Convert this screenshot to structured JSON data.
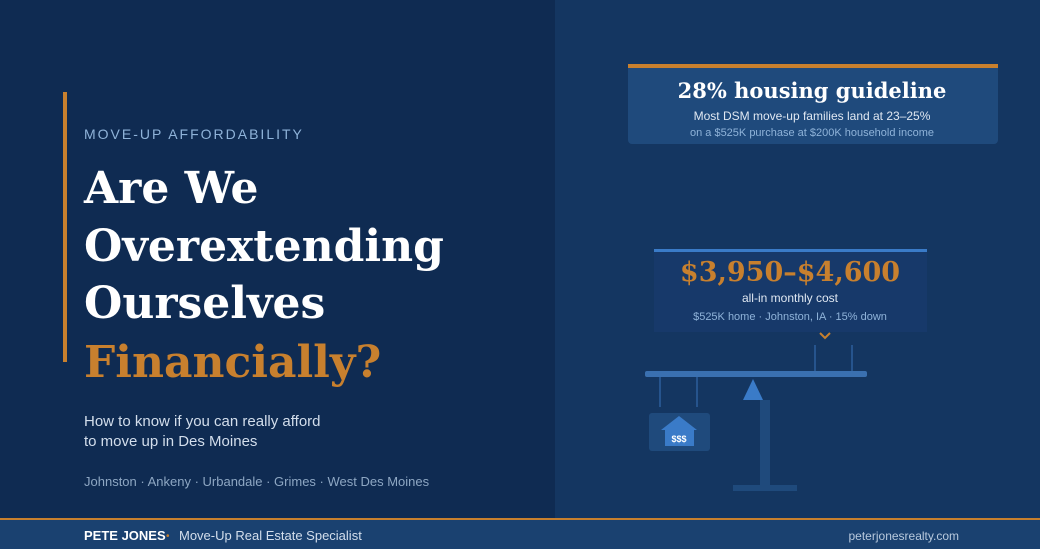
{
  "eyebrow": "MOVE-UP AFFORDABILITY",
  "title": {
    "lines": [
      "Are We",
      "Overextending",
      "Ourselves"
    ],
    "highlight": "Financially?"
  },
  "subtitle": {
    "lines": [
      "How to know if you can really afford",
      "to move up in Des Moines"
    ]
  },
  "towns": "Johnston · Ankeny · Urbandale · Grimes · West Des Moines",
  "guideline_card": {
    "title": "28% housing guideline",
    "lines": [
      "Most DSM move-up families land at 23–25%",
      "on a $525K purchase at $200K household income"
    ]
  },
  "cost_card": {
    "price": "$3,950–$4,600",
    "label": "all-in monthly cost",
    "detail": "$525K home · Johnston, IA · 15% down"
  },
  "house_icon_text": "$$$",
  "footer": {
    "name": "PETE JONES",
    "bullet": "•",
    "role": "Move-Up Real Estate Specialist",
    "url": "peterjonesrealty.com"
  }
}
